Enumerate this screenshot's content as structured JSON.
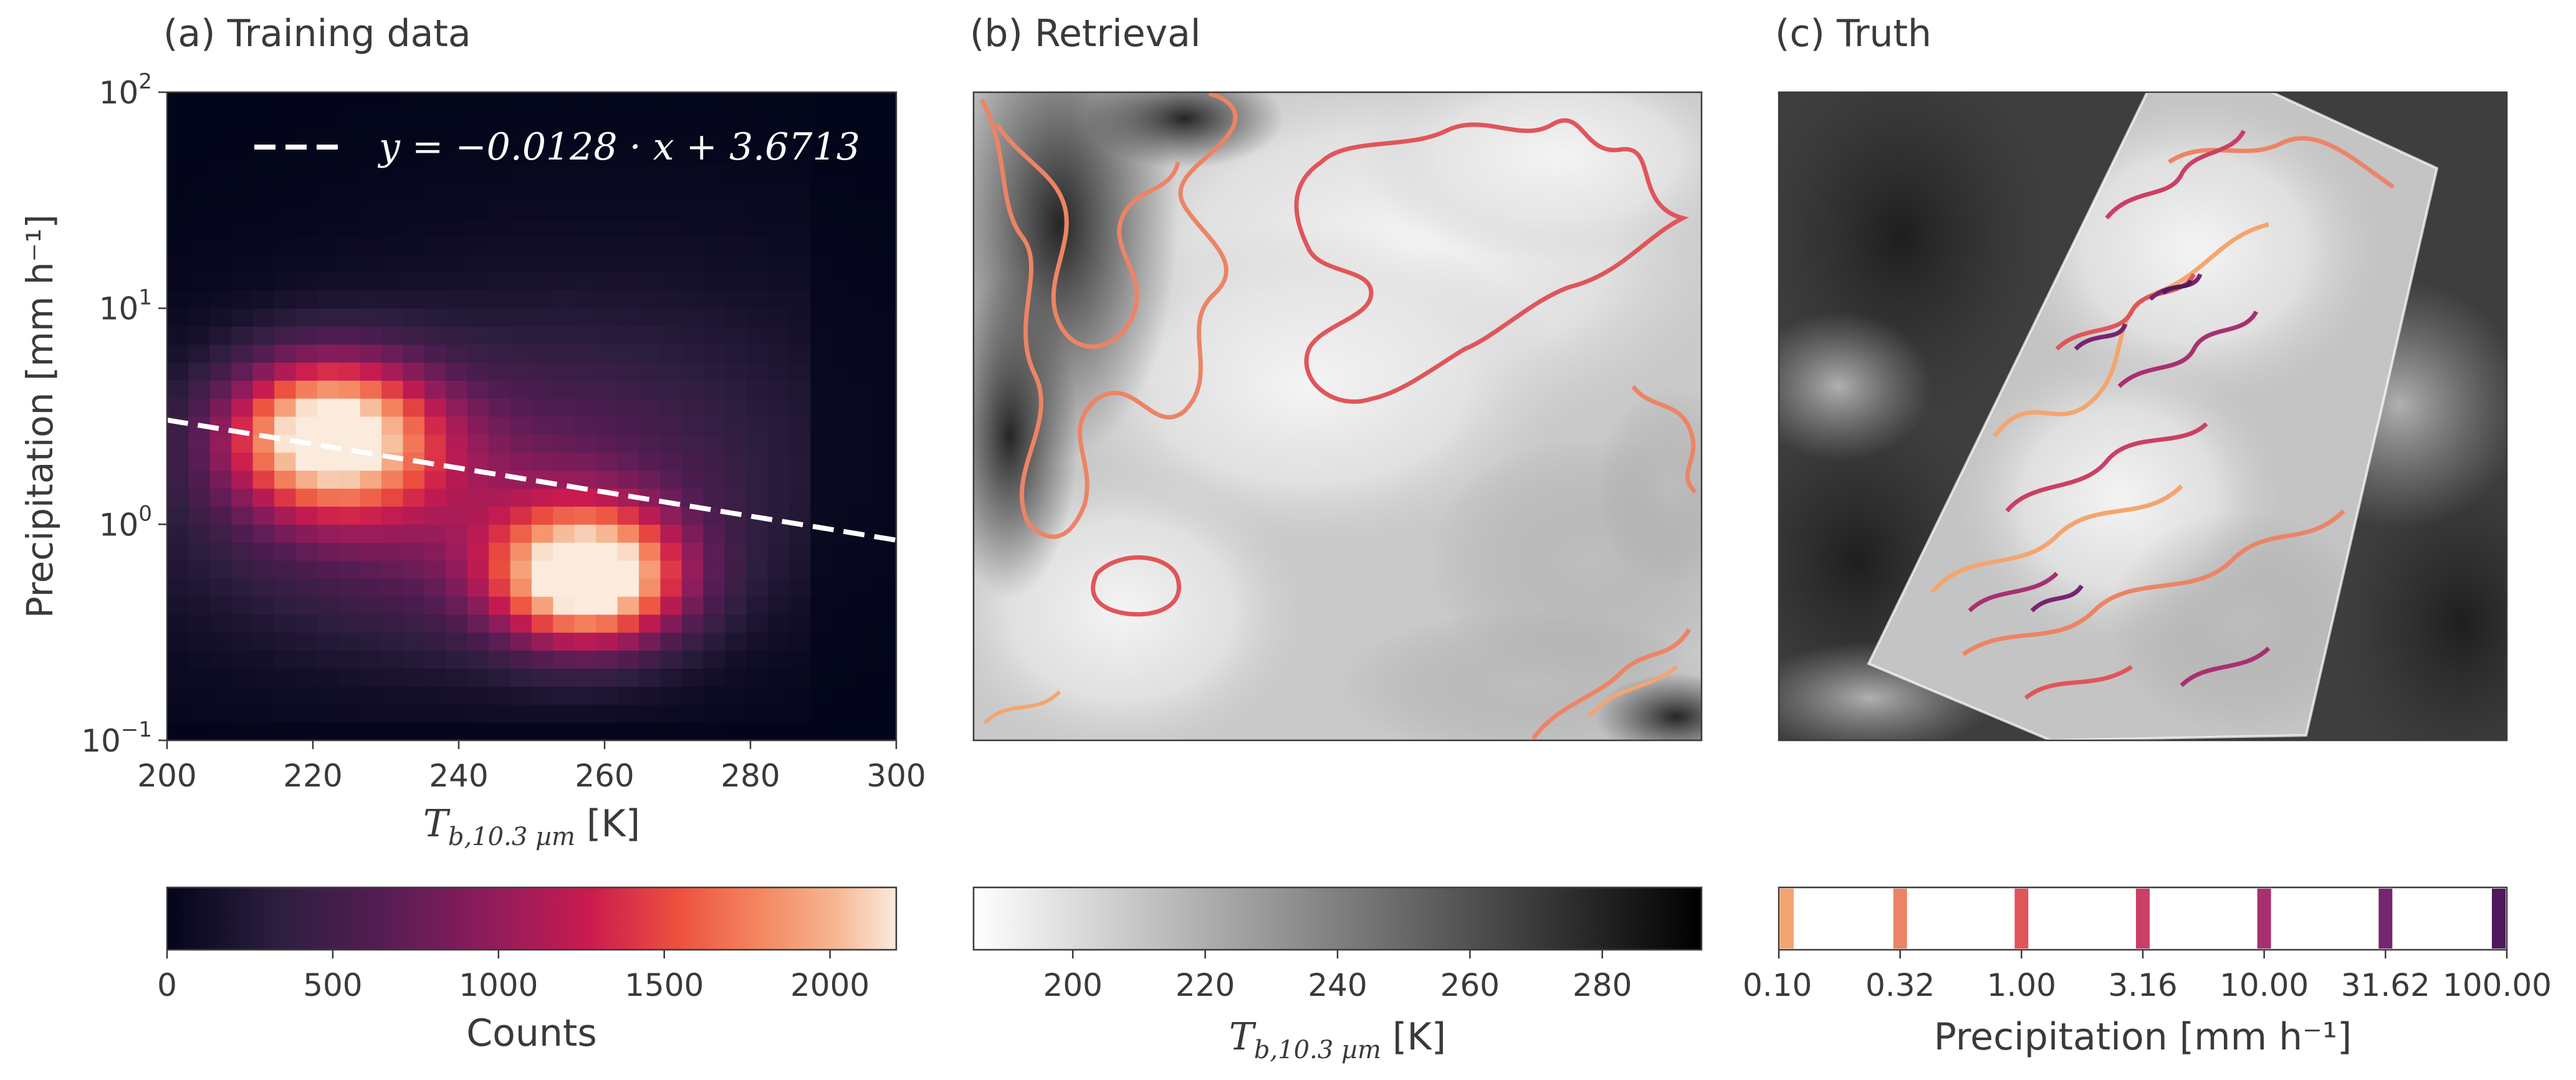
{
  "panels": {
    "a": {
      "title": "(a) Training data"
    },
    "b": {
      "title": "(b) Retrieval"
    },
    "c": {
      "title": "(c) Truth"
    }
  },
  "chart_data": [
    {
      "type": "heatmap",
      "title": "(a) Training data",
      "xlabel_main": "T",
      "xlabel_sub": "b,10.3 µm",
      "xlabel_unit": "[K]",
      "ylabel": "Precipitation [mm h⁻¹]",
      "xlim": [
        200,
        300
      ],
      "ylim": [
        0.1,
        100
      ],
      "yscale": "log",
      "xticks": [
        "200",
        "220",
        "240",
        "260",
        "280",
        "300"
      ],
      "yticks": [
        {
          "base": "10",
          "exp": "−1",
          "value": 0.1
        },
        {
          "base": "10",
          "exp": "0",
          "value": 1
        },
        {
          "base": "10",
          "exp": "1",
          "value": 10
        },
        {
          "base": "10",
          "exp": "2",
          "value": 100
        }
      ],
      "fit_line": {
        "legend": "y = −0.0128 · x + 3.6713",
        "slope": -0.0128,
        "intercept": 3.6713,
        "style": "dashed",
        "color": "#ffffff"
      },
      "colorbar": {
        "label": "Counts",
        "ticks": [
          "0",
          "500",
          "1000",
          "1500",
          "2000"
        ],
        "range": [
          0,
          2200
        ],
        "colormap": "rocket"
      },
      "blobs": [
        {
          "x": 222,
          "logy": 0.42,
          "sx": 10,
          "sy": 0.25,
          "amp": 2100
        },
        {
          "x": 258,
          "logy": -0.25,
          "sx": 9,
          "sy": 0.22,
          "amp": 2200
        },
        {
          "x": 240,
          "logy": 0.05,
          "sx": 26,
          "sy": 0.45,
          "amp": 750
        },
        {
          "x": 262,
          "logy": 0.6,
          "sx": 28,
          "sy": 0.55,
          "amp": 230
        }
      ]
    },
    {
      "type": "image",
      "title": "(b) Retrieval",
      "background": "brightness temperature (grayscale)",
      "contour_levels": [
        0.1,
        0.32,
        1.0
      ],
      "colorbar": {
        "label_main": "T",
        "label_sub": "b,10.3 µm",
        "label_unit": "[K]",
        "ticks": [
          "200",
          "220",
          "240",
          "260",
          "280"
        ],
        "range": [
          185,
          295
        ],
        "colormap": "gray_r"
      }
    },
    {
      "type": "image",
      "title": "(c) Truth",
      "background": "brightness temperature (grayscale) with swath overlay",
      "contour_levels": [
        0.1,
        0.32,
        1.0,
        3.16,
        10.0,
        31.62,
        100.0
      ],
      "colorbar": {
        "label": "Precipitation [mm h⁻¹]",
        "ticks": [
          "0.10",
          "0.32",
          "1.00",
          "3.16",
          "10.00",
          "31.62",
          "100.00"
        ],
        "level_colors": [
          "#f4a56f",
          "#ec8466",
          "#e0555a",
          "#cc3f65",
          "#a83071",
          "#76256f",
          "#4e1a5b"
        ]
      }
    }
  ]
}
